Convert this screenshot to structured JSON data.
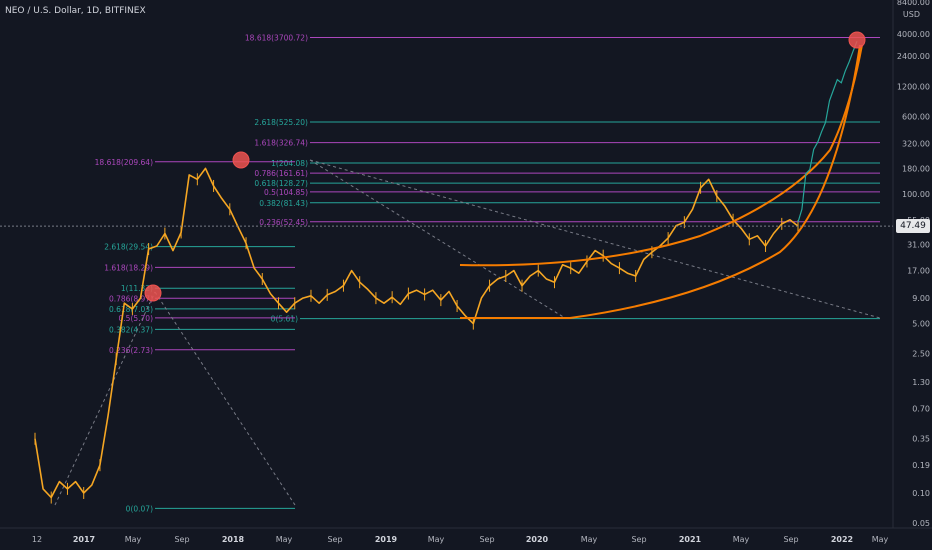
{
  "header": {
    "title": "NEO / U.S. Dollar, 1D, BITFINEX"
  },
  "price_axis": {
    "unit": "USD",
    "current_price": "47.49"
  },
  "chart_data": {
    "type": "line",
    "title": "NEO / U.S. Dollar, 1D, BITFINEX",
    "xlabel": "",
    "ylabel": "USD",
    "yscale": "log",
    "ylim": [
      0.05,
      8400
    ],
    "y_ticks": [
      "8400.00",
      "4000.00",
      "2400.00",
      "1200.00",
      "600.00",
      "320.00",
      "180.00",
      "100.00",
      "55.00",
      "31.00",
      "17.00",
      "9.00",
      "5.00",
      "2.50",
      "1.30",
      "0.70",
      "0.35",
      "0.19",
      "0.10",
      "0.05"
    ],
    "x_ticks": [
      "12",
      "2017",
      "May",
      "Sep",
      "2018",
      "May",
      "Sep",
      "2019",
      "May",
      "Sep",
      "2020",
      "May",
      "Sep",
      "2021",
      "May",
      "Sep",
      "2022",
      "May"
    ],
    "series": [
      {
        "values": [
          0.35,
          0.11,
          0.09,
          0.13,
          0.11,
          0.13,
          0.1,
          0.12,
          0.19,
          0.6,
          2.2,
          8,
          7,
          9,
          28,
          30,
          40,
          27,
          41,
          155,
          140,
          180,
          120,
          90,
          70,
          47,
          32,
          18,
          14,
          10,
          8,
          6.5,
          8,
          9,
          9.5,
          8,
          9.7,
          10.5,
          12,
          17,
          13,
          11,
          9,
          8,
          9.2,
          7.8,
          10,
          10.8,
          9.8,
          10.8,
          8.6,
          10.5,
          7.5,
          6,
          5,
          9,
          12,
          14,
          15,
          17,
          12,
          15,
          17,
          14,
          13,
          19.5,
          18,
          16,
          21,
          27,
          24,
          20,
          18,
          16,
          15,
          22,
          26,
          30,
          36,
          48,
          52,
          70,
          115,
          140,
          95,
          75,
          55,
          45,
          35,
          38,
          30,
          40,
          50,
          55,
          47.49
        ]
      }
    ],
    "fib_levels": [
      "18.618(3700.72)",
      "2.618(525.20)",
      "1.618(326.74)",
      "1(204.08)",
      "0.786(161.61)",
      "0.618(128.27)",
      "0.5(104.85)",
      "0.382(81.43)",
      "0.236(52.45)",
      "0(5.61)",
      "18.618(209.64)",
      "2.618(29.54)",
      "1.618(18.29)",
      "1(11.32)",
      "0.786(8.97)",
      "0.618(7.03)",
      "0.5(5.70)",
      "0.382(4.37)",
      "0.236(2.73)",
      "0(0.07)"
    ],
    "projection": [
      52,
      70,
      160,
      175,
      280,
      330,
      420,
      520,
      860,
      1100,
      1400,
      1300,
      1700,
      2100,
      2700,
      3400
    ],
    "colors": {
      "candles": "#f5a623",
      "fib_teal": "#26a69a",
      "fib_purple": "#ab47bc",
      "curve": "#f57c00",
      "projection": "#26a69a",
      "marker": "#ef5350"
    }
  }
}
